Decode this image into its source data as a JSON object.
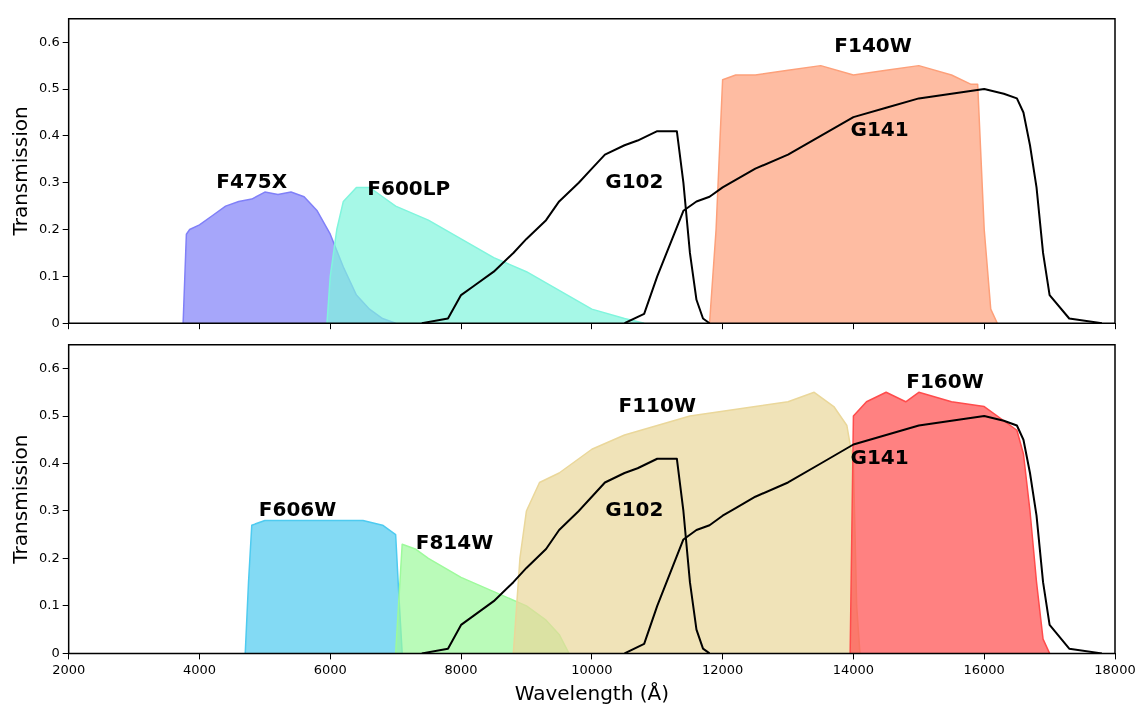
{
  "chart_data": [
    {
      "type": "area",
      "ylabel": "Transmission",
      "xlim": [
        2000,
        18000
      ],
      "xticks": [
        2000,
        4000,
        6000,
        8000,
        10000,
        12000,
        14000,
        16000,
        18000
      ],
      "ylim": [
        0,
        0.65
      ],
      "yticks": [
        0,
        0.1,
        0.2,
        0.3,
        0.4,
        0.5,
        0.6
      ],
      "tick_labels": "y",
      "grid": false,
      "legend": false,
      "series": [
        {
          "name": "F475X",
          "color": "#8080f8",
          "x": [
            3750,
            3800,
            3850,
            4000,
            4200,
            4400,
            4600,
            4800,
            5000,
            5200,
            5400,
            5600,
            5800,
            6000,
            6200,
            6400,
            6600,
            6800,
            7000
          ],
          "values": [
            0,
            0.19,
            0.2,
            0.21,
            0.23,
            0.25,
            0.26,
            0.265,
            0.28,
            0.275,
            0.28,
            0.27,
            0.24,
            0.19,
            0.12,
            0.06,
            0.03,
            0.01,
            0
          ]
        },
        {
          "name": "F600LP",
          "color": "#80f5dd",
          "x": [
            5950,
            6000,
            6100,
            6200,
            6400,
            6600,
            6800,
            7000,
            7500,
            8000,
            8500,
            9000,
            9500,
            10000,
            10500,
            10800
          ],
          "values": [
            0,
            0.1,
            0.2,
            0.26,
            0.29,
            0.29,
            0.27,
            0.25,
            0.22,
            0.18,
            0.14,
            0.11,
            0.07,
            0.03,
            0.01,
            0
          ]
        },
        {
          "name": "F140W",
          "color": "#fda07a",
          "x": [
            11800,
            11900,
            12000,
            12200,
            12500,
            13000,
            13500,
            14000,
            14500,
            15000,
            15500,
            15800,
            15900,
            16000,
            16100,
            16200
          ],
          "values": [
            0,
            0.2,
            0.52,
            0.53,
            0.53,
            0.54,
            0.55,
            0.53,
            0.54,
            0.55,
            0.53,
            0.51,
            0.51,
            0.2,
            0.03,
            0
          ]
        },
        {
          "name": "G102",
          "type": "line",
          "color": "#000000",
          "x": [
            7400,
            7800,
            8000,
            8200,
            8500,
            8800,
            9000,
            9300,
            9500,
            9800,
            10000,
            10200,
            10500,
            10700,
            11000,
            11300,
            11400,
            11500,
            11600,
            11700,
            11800
          ],
          "values": [
            0,
            0.01,
            0.06,
            0.08,
            0.11,
            0.15,
            0.18,
            0.22,
            0.26,
            0.3,
            0.33,
            0.36,
            0.38,
            0.39,
            0.41,
            0.41,
            0.3,
            0.15,
            0.05,
            0.01,
            0
          ]
        },
        {
          "name": "G141",
          "type": "line",
          "color": "#000000",
          "x": [
            10500,
            10800,
            11000,
            11200,
            11400,
            11600,
            11800,
            12000,
            12500,
            13000,
            13500,
            14000,
            14500,
            15000,
            15500,
            16000,
            16300,
            16500,
            16600,
            16700,
            16800,
            16900,
            17000,
            17300,
            17800
          ],
          "values": [
            0,
            0.02,
            0.1,
            0.17,
            0.24,
            0.26,
            0.27,
            0.29,
            0.33,
            0.36,
            0.4,
            0.44,
            0.46,
            0.48,
            0.49,
            0.5,
            0.49,
            0.48,
            0.45,
            0.38,
            0.29,
            0.15,
            0.06,
            0.01,
            0
          ]
        }
      ]
    },
    {
      "type": "area",
      "xlabel": "Wavelength (Å)",
      "ylabel": "Transmission",
      "xlim": [
        2000,
        18000
      ],
      "xticks": [
        2000,
        4000,
        6000,
        8000,
        10000,
        12000,
        14000,
        16000,
        18000
      ],
      "ylim": [
        0,
        0.65
      ],
      "yticks": [
        0,
        0.1,
        0.2,
        0.3,
        0.4,
        0.5,
        0.6
      ],
      "grid": false,
      "legend": false,
      "series": [
        {
          "name": "F606W",
          "color": "#4ecbf0",
          "x": [
            4700,
            4750,
            4800,
            5000,
            5500,
            6000,
            6500,
            6800,
            7000,
            7050,
            7100
          ],
          "values": [
            0,
            0.15,
            0.27,
            0.28,
            0.28,
            0.28,
            0.28,
            0.27,
            0.25,
            0.12,
            0
          ]
        },
        {
          "name": "F814W",
          "color": "#9dfa9b",
          "x": [
            7000,
            7100,
            7300,
            7500,
            8000,
            8500,
            9000,
            9300,
            9500,
            9650
          ],
          "values": [
            0,
            0.23,
            0.22,
            0.2,
            0.16,
            0.13,
            0.1,
            0.07,
            0.04,
            0
          ]
        },
        {
          "name": "F110W",
          "color": "#ead79a",
          "x": [
            8800,
            8900,
            9000,
            9200,
            9500,
            10000,
            10500,
            11000,
            11500,
            12000,
            12500,
            13000,
            13400,
            13700,
            13900,
            14000,
            14050,
            14100
          ],
          "values": [
            0,
            0.2,
            0.3,
            0.36,
            0.38,
            0.43,
            0.46,
            0.48,
            0.5,
            0.51,
            0.52,
            0.53,
            0.55,
            0.52,
            0.48,
            0.4,
            0.1,
            0
          ]
        },
        {
          "name": "F160W",
          "color": "#ff4c4c",
          "x": [
            13950,
            14000,
            14200,
            14500,
            14800,
            15000,
            15500,
            16000,
            16300,
            16500,
            16600,
            16700,
            16800,
            16900,
            17000
          ],
          "values": [
            0,
            0.5,
            0.53,
            0.55,
            0.53,
            0.55,
            0.53,
            0.52,
            0.49,
            0.47,
            0.42,
            0.3,
            0.15,
            0.03,
            0
          ]
        },
        {
          "name": "G102",
          "type": "line",
          "color": "#000000",
          "x": [
            7400,
            7800,
            8000,
            8200,
            8500,
            8800,
            9000,
            9300,
            9500,
            9800,
            10000,
            10200,
            10500,
            10700,
            11000,
            11300,
            11400,
            11500,
            11600,
            11700,
            11800
          ],
          "values": [
            0,
            0.01,
            0.06,
            0.08,
            0.11,
            0.15,
            0.18,
            0.22,
            0.26,
            0.3,
            0.33,
            0.36,
            0.38,
            0.39,
            0.41,
            0.41,
            0.3,
            0.15,
            0.05,
            0.01,
            0
          ]
        },
        {
          "name": "G141",
          "type": "line",
          "color": "#000000",
          "x": [
            10500,
            10800,
            11000,
            11200,
            11400,
            11600,
            11800,
            12000,
            12500,
            13000,
            13500,
            14000,
            14500,
            15000,
            15500,
            16000,
            16300,
            16500,
            16600,
            16700,
            16800,
            16900,
            17000,
            17300,
            17800
          ],
          "values": [
            0,
            0.02,
            0.1,
            0.17,
            0.24,
            0.26,
            0.27,
            0.29,
            0.33,
            0.36,
            0.4,
            0.44,
            0.46,
            0.48,
            0.49,
            0.5,
            0.49,
            0.48,
            0.45,
            0.38,
            0.29,
            0.15,
            0.06,
            0.01,
            0
          ]
        }
      ]
    }
  ]
}
